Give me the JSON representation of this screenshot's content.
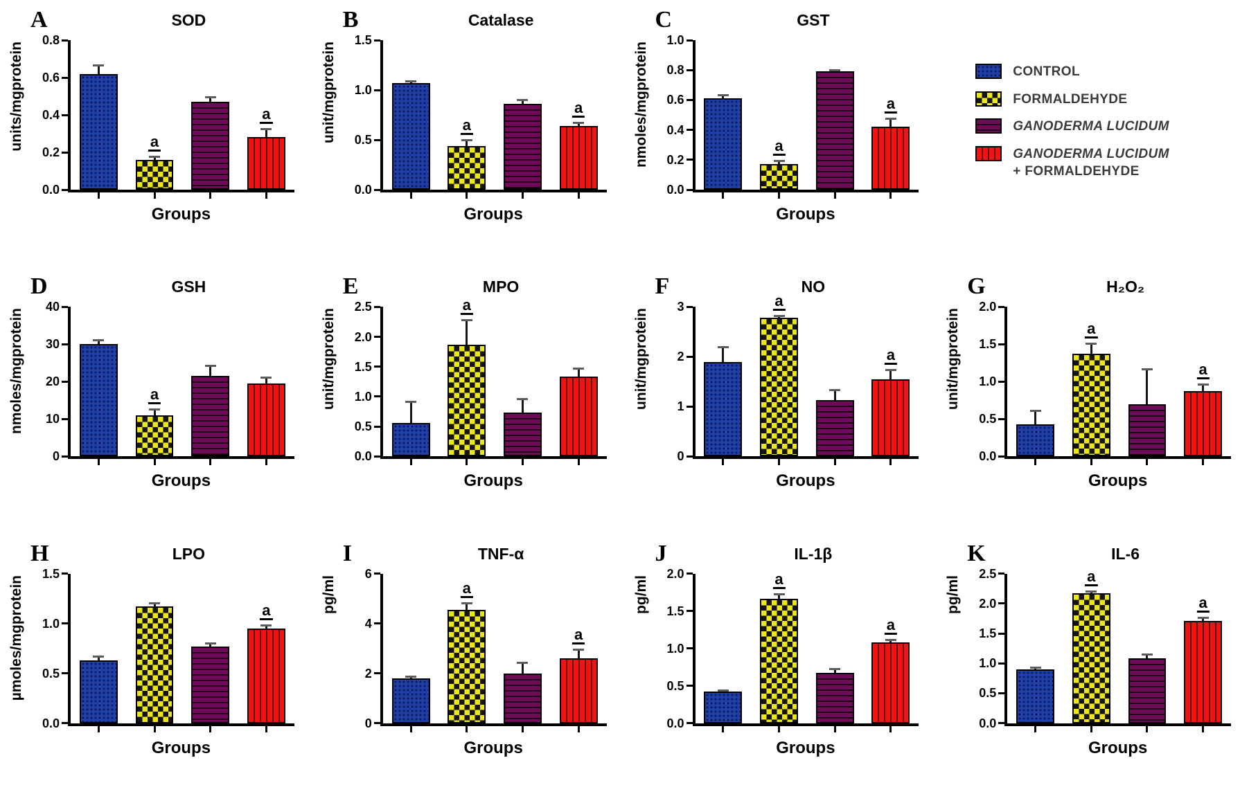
{
  "xlabel": "Groups",
  "groups": [
    "CONTROL",
    "FORMALDEHYDE",
    "GANODERMA LUCIDUM",
    "GANODERMA LUCIDUM + FORMALDEHYDE"
  ],
  "layout": [
    [
      "A",
      "B",
      "C",
      "LEGEND"
    ],
    [
      "D",
      "E",
      "F",
      "G"
    ],
    [
      "H",
      "I",
      "J",
      "K"
    ]
  ],
  "legend": {
    "items": [
      {
        "label": "CONTROL",
        "italic": false,
        "color": "#2140a6",
        "pattern": "dots"
      },
      {
        "label": "FORMALDEHYDE",
        "italic": false,
        "color": "#ece71c",
        "pattern": "checker"
      },
      {
        "label": "GANODERMA LUCIDUM",
        "italic": true,
        "color": "#6e0a58",
        "pattern": "hlines"
      },
      {
        "label": "GANODERMA LUCIDUM",
        "label2": "+ FORMALDEHYDE",
        "italic": true,
        "color": "#f31311",
        "pattern": "vlines"
      }
    ]
  },
  "chart_data": [
    {
      "panel": "A",
      "type": "bar",
      "title": "SOD",
      "ylabel": "units/mgprotein",
      "xlabel": "Groups",
      "ylim": [
        0,
        0.8
      ],
      "yticks": [
        0,
        0.2,
        0.4,
        0.6,
        0.8
      ],
      "ytick_labels": [
        "0.0",
        "0.2",
        "0.4",
        "0.6",
        "0.8"
      ],
      "categories": [
        "CONTROL",
        "FORMALDEHYDE",
        "GANODERMA LUCIDUM",
        "GANODERMA LUCIDUM + FORMALDEHYDE"
      ],
      "values": [
        0.62,
        0.16,
        0.47,
        0.28
      ],
      "errors": [
        0.05,
        0.02,
        0.03,
        0.05
      ],
      "sig": [
        "",
        "a",
        "",
        "a"
      ]
    },
    {
      "panel": "B",
      "type": "bar",
      "title": "Catalase",
      "ylabel": "unit/mgprotein",
      "xlabel": "Groups",
      "ylim": [
        0,
        1.5
      ],
      "yticks": [
        0,
        0.5,
        1.0,
        1.5
      ],
      "ytick_labels": [
        "0.0",
        "0.5",
        "1.0",
        "1.5"
      ],
      "categories": [
        "CONTROL",
        "FORMALDEHYDE",
        "GANODERMA LUCIDUM",
        "GANODERMA LUCIDUM + FORMALDEHYDE"
      ],
      "values": [
        1.07,
        0.44,
        0.86,
        0.64
      ],
      "errors": [
        0.03,
        0.07,
        0.05,
        0.04
      ],
      "sig": [
        "",
        "a",
        "",
        "a"
      ]
    },
    {
      "panel": "C",
      "type": "bar",
      "title": "GST",
      "ylabel": "nmoles/mgprotein",
      "xlabel": "Groups",
      "ylim": [
        0,
        1.0
      ],
      "yticks": [
        0,
        0.2,
        0.4,
        0.6,
        0.8,
        1.0
      ],
      "ytick_labels": [
        "0.0",
        "0.2",
        "0.4",
        "0.6",
        "0.8",
        "1.0"
      ],
      "categories": [
        "CONTROL",
        "FORMALDEHYDE",
        "GANODERMA LUCIDUM",
        "GANODERMA LUCIDUM + FORMALDEHYDE"
      ],
      "values": [
        0.61,
        0.17,
        0.79,
        0.42
      ],
      "errors": [
        0.03,
        0.03,
        0.015,
        0.06
      ],
      "sig": [
        "",
        "a",
        "",
        "a"
      ]
    },
    {
      "panel": "D",
      "type": "bar",
      "title": "GSH",
      "ylabel": "nmoles/mgprotein",
      "xlabel": "Groups",
      "ylim": [
        0,
        40
      ],
      "yticks": [
        0,
        10,
        20,
        30,
        40
      ],
      "ytick_labels": [
        "0",
        "10",
        "20",
        "30",
        "40"
      ],
      "categories": [
        "CONTROL",
        "FORMALDEHYDE",
        "GANODERMA LUCIDUM",
        "GANODERMA LUCIDUM + FORMALDEHYDE"
      ],
      "values": [
        30,
        11,
        21.5,
        19.5
      ],
      "errors": [
        1.3,
        1.8,
        3.0,
        1.8
      ],
      "sig": [
        "",
        "a",
        "",
        ""
      ]
    },
    {
      "panel": "E",
      "type": "bar",
      "title": "MPO",
      "ylabel": "unit/mgprotein",
      "xlabel": "Groups",
      "ylim": [
        0,
        2.5
      ],
      "yticks": [
        0,
        0.5,
        1.0,
        1.5,
        2.0,
        2.5
      ],
      "ytick_labels": [
        "0.0",
        "0.5",
        "1.0",
        "1.5",
        "2.0",
        "2.5"
      ],
      "categories": [
        "CONTROL",
        "FORMALDEHYDE",
        "GANODERMA LUCIDUM",
        "GANODERMA LUCIDUM + FORMALDEHYDE"
      ],
      "values": [
        0.56,
        1.87,
        0.73,
        1.33
      ],
      "errors": [
        0.37,
        0.43,
        0.25,
        0.15
      ],
      "sig": [
        "",
        "a",
        "",
        ""
      ]
    },
    {
      "panel": "F",
      "type": "bar",
      "title": "NO",
      "ylabel": "unit/mgprotein",
      "xlabel": "Groups",
      "ylim": [
        0,
        3
      ],
      "yticks": [
        0,
        1,
        2,
        3
      ],
      "ytick_labels": [
        "0",
        "1",
        "2",
        "3"
      ],
      "categories": [
        "CONTROL",
        "FORMALDEHYDE",
        "GANODERMA LUCIDUM",
        "GANODERMA LUCIDUM + FORMALDEHYDE"
      ],
      "values": [
        1.9,
        2.78,
        1.13,
        1.55
      ],
      "errors": [
        0.32,
        0.06,
        0.22,
        0.2
      ],
      "sig": [
        "",
        "a",
        "",
        "a"
      ]
    },
    {
      "panel": "G",
      "type": "bar",
      "title": "H₂O₂",
      "ylabel": "unit/mgprotein",
      "xlabel": "Groups",
      "ylim": [
        0,
        2.0
      ],
      "yticks": [
        0,
        0.5,
        1.0,
        1.5,
        2.0
      ],
      "ytick_labels": [
        "0.0",
        "0.5",
        "1.0",
        "1.5",
        "2.0"
      ],
      "categories": [
        "CONTROL",
        "FORMALDEHYDE",
        "GANODERMA LUCIDUM",
        "GANODERMA LUCIDUM + FORMALDEHYDE"
      ],
      "values": [
        0.43,
        1.37,
        0.7,
        0.87
      ],
      "errors": [
        0.19,
        0.15,
        0.48,
        0.11
      ],
      "sig": [
        "",
        "a",
        "",
        "a"
      ]
    },
    {
      "panel": "H",
      "type": "bar",
      "title": "LPO",
      "ylabel": "µmoles/mgprotein",
      "xlabel": "Groups",
      "ylim": [
        0,
        1.5
      ],
      "yticks": [
        0,
        0.5,
        1.0,
        1.5
      ],
      "ytick_labels": [
        "0.0",
        "0.5",
        "1.0",
        "1.5"
      ],
      "categories": [
        "CONTROL",
        "FORMALDEHYDE",
        "GANODERMA LUCIDUM",
        "GANODERMA LUCIDUM + FORMALDEHYDE"
      ],
      "values": [
        0.63,
        1.17,
        0.77,
        0.95
      ],
      "errors": [
        0.05,
        0.04,
        0.04,
        0.04
      ],
      "sig": [
        "",
        "",
        "",
        "a"
      ]
    },
    {
      "panel": "I",
      "type": "bar",
      "title": "TNF-α",
      "ylabel": "pg/ml",
      "xlabel": "Groups",
      "ylim": [
        0,
        6
      ],
      "yticks": [
        0,
        2,
        4,
        6
      ],
      "ytick_labels": [
        "0",
        "2",
        "4",
        "6"
      ],
      "categories": [
        "CONTROL",
        "FORMALDEHYDE",
        "GANODERMA LUCIDUM",
        "GANODERMA LUCIDUM + FORMALDEHYDE"
      ],
      "values": [
        1.8,
        4.55,
        2.0,
        2.6
      ],
      "errors": [
        0.1,
        0.3,
        0.45,
        0.4
      ],
      "sig": [
        "",
        "a",
        "",
        "a"
      ]
    },
    {
      "panel": "J",
      "type": "bar",
      "title": "IL-1β",
      "ylabel": "pg/ml",
      "xlabel": "Groups",
      "ylim": [
        0,
        2.0
      ],
      "yticks": [
        0,
        0.5,
        1.0,
        1.5,
        2.0
      ],
      "ytick_labels": [
        "0.0",
        "0.5",
        "1.0",
        "1.5",
        "2.0"
      ],
      "categories": [
        "CONTROL",
        "FORMALDEHYDE",
        "GANODERMA LUCIDUM",
        "GANODERMA LUCIDUM + FORMALDEHYDE"
      ],
      "values": [
        0.42,
        1.66,
        0.67,
        1.08
      ],
      "errors": [
        0.03,
        0.08,
        0.07,
        0.05
      ],
      "sig": [
        "",
        "a",
        "",
        "a"
      ]
    },
    {
      "panel": "K",
      "type": "bar",
      "title": "IL-6",
      "ylabel": "pg/ml",
      "xlabel": "Groups",
      "ylim": [
        0,
        2.5
      ],
      "yticks": [
        0,
        0.5,
        1.0,
        1.5,
        2.0,
        2.5
      ],
      "ytick_labels": [
        "0.0",
        "0.5",
        "1.0",
        "1.5",
        "2.0",
        "2.5"
      ],
      "categories": [
        "CONTROL",
        "FORMALDEHYDE",
        "GANODERMA LUCIDUM",
        "GANODERMA LUCIDUM + FORMALDEHYDE"
      ],
      "values": [
        0.9,
        2.17,
        1.08,
        1.71
      ],
      "errors": [
        0.05,
        0.05,
        0.09,
        0.07
      ],
      "sig": [
        "",
        "a",
        "",
        "a"
      ]
    }
  ]
}
